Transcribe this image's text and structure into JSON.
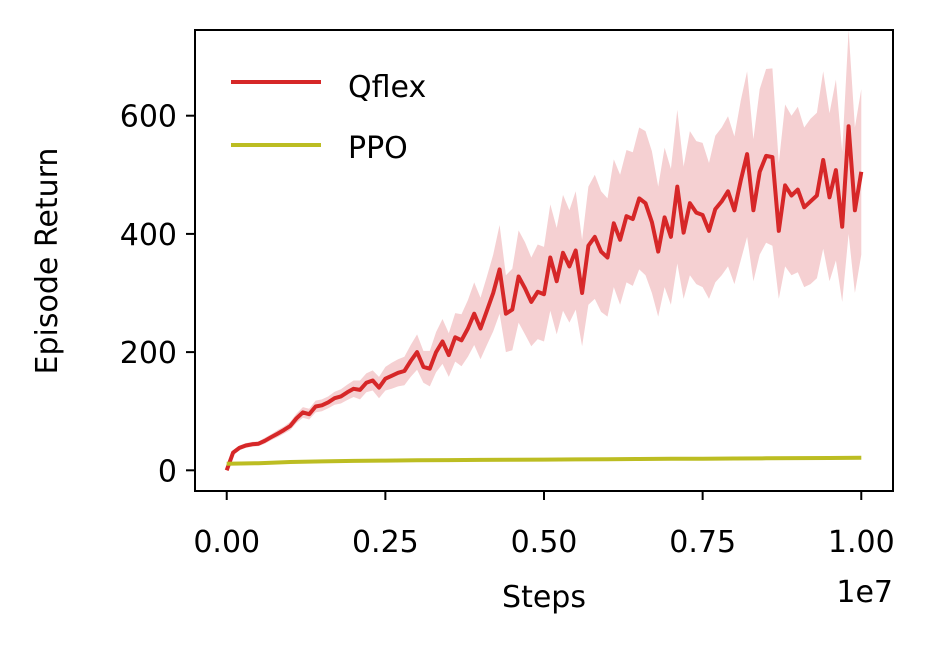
{
  "chart_data": {
    "type": "line",
    "xlabel": "Steps",
    "ylabel": "Episode Return",
    "x_multiplier_label": "1e7",
    "xlim": [
      -0.05,
      1.05
    ],
    "ylim": [
      -35,
      745
    ],
    "x_ticks": [
      0.0,
      0.25,
      0.5,
      0.75,
      1.0
    ],
    "x_tick_labels": [
      "0.00",
      "0.25",
      "0.50",
      "0.75",
      "1.00"
    ],
    "y_ticks": [
      0,
      200,
      400,
      600
    ],
    "y_tick_labels": [
      "0",
      "200",
      "400",
      "600"
    ],
    "grid": false,
    "legend_position": "top-left",
    "series": [
      {
        "name": "Qflex",
        "color": "#d62728",
        "band_color": "#f5d0d2",
        "x": [
          0.0,
          0.01,
          0.02,
          0.03,
          0.04,
          0.05,
          0.06,
          0.07,
          0.08,
          0.09,
          0.1,
          0.11,
          0.12,
          0.13,
          0.14,
          0.15,
          0.16,
          0.17,
          0.18,
          0.19,
          0.2,
          0.21,
          0.22,
          0.23,
          0.24,
          0.25,
          0.26,
          0.27,
          0.28,
          0.29,
          0.3,
          0.31,
          0.32,
          0.33,
          0.34,
          0.35,
          0.36,
          0.37,
          0.38,
          0.39,
          0.4,
          0.41,
          0.42,
          0.43,
          0.44,
          0.45,
          0.46,
          0.47,
          0.48,
          0.49,
          0.5,
          0.51,
          0.52,
          0.53,
          0.54,
          0.55,
          0.56,
          0.57,
          0.58,
          0.59,
          0.6,
          0.61,
          0.62,
          0.63,
          0.64,
          0.65,
          0.66,
          0.67,
          0.68,
          0.69,
          0.7,
          0.71,
          0.72,
          0.73,
          0.74,
          0.75,
          0.76,
          0.77,
          0.78,
          0.79,
          0.8,
          0.81,
          0.82,
          0.83,
          0.84,
          0.85,
          0.86,
          0.87,
          0.88,
          0.89,
          0.9,
          0.91,
          0.92,
          0.93,
          0.94,
          0.95,
          0.96,
          0.97,
          0.98,
          0.99,
          1.0
        ],
        "mean": [
          0,
          30,
          38,
          42,
          44,
          45,
          50,
          56,
          62,
          68,
          75,
          88,
          98,
          95,
          108,
          110,
          115,
          122,
          125,
          132,
          138,
          136,
          148,
          152,
          140,
          155,
          160,
          165,
          168,
          185,
          200,
          175,
          172,
          200,
          218,
          195,
          225,
          220,
          240,
          265,
          240,
          270,
          300,
          340,
          265,
          272,
          328,
          308,
          285,
          302,
          298,
          360,
          320,
          368,
          345,
          372,
          300,
          380,
          395,
          370,
          360,
          418,
          390,
          430,
          425,
          460,
          452,
          420,
          370,
          428,
          395,
          480,
          402,
          452,
          436,
          432,
          405,
          442,
          455,
          472,
          440,
          490,
          535,
          440,
          505,
          532,
          530,
          405,
          482,
          465,
          475,
          445,
          455,
          465,
          525,
          462,
          508,
          412,
          582,
          440,
          505
        ],
        "lower": [
          0,
          27,
          34,
          38,
          40,
          41,
          45,
          51,
          56,
          62,
          68,
          80,
          89,
          86,
          98,
          100,
          105,
          111,
          113,
          119,
          124,
          120,
          132,
          135,
          122,
          135,
          138,
          142,
          144,
          158,
          170,
          148,
          142,
          166,
          180,
          158,
          184,
          176,
          192,
          212,
          188,
          212,
          235,
          265,
          200,
          203,
          250,
          230,
          210,
          222,
          218,
          270,
          230,
          270,
          250,
          272,
          210,
          280,
          290,
          268,
          260,
          310,
          280,
          318,
          312,
          340,
          330,
          300,
          260,
          310,
          280,
          350,
          290,
          330,
          315,
          310,
          290,
          318,
          330,
          345,
          315,
          355,
          395,
          320,
          365,
          385,
          380,
          290,
          345,
          330,
          335,
          310,
          315,
          325,
          375,
          320,
          355,
          285,
          400,
          300,
          365
        ],
        "upper": [
          0,
          33,
          42,
          46,
          48,
          49,
          55,
          61,
          68,
          74,
          82,
          96,
          107,
          104,
          118,
          120,
          125,
          133,
          137,
          145,
          152,
          152,
          164,
          169,
          158,
          175,
          182,
          188,
          192,
          212,
          230,
          202,
          202,
          234,
          256,
          232,
          266,
          264,
          288,
          318,
          292,
          328,
          365,
          415,
          330,
          341,
          406,
          386,
          360,
          382,
          378,
          450,
          410,
          466,
          440,
          472,
          390,
          480,
          500,
          472,
          460,
          526,
          500,
          542,
          538,
          580,
          574,
          540,
          480,
          546,
          510,
          610,
          514,
          574,
          557,
          554,
          520,
          566,
          580,
          599,
          565,
          625,
          675,
          560,
          645,
          679,
          680,
          520,
          619,
          600,
          615,
          580,
          595,
          605,
          675,
          604,
          661,
          539,
          764,
          580,
          645
        ]
      },
      {
        "name": "PPO",
        "color": "#bcbd22",
        "x": [
          0.0,
          0.05,
          0.1,
          0.15,
          0.2,
          0.25,
          0.3,
          0.35,
          0.4,
          0.45,
          0.5,
          0.55,
          0.6,
          0.65,
          0.7,
          0.75,
          0.8,
          0.85,
          0.9,
          0.95,
          1.0
        ],
        "mean": [
          11,
          12,
          14,
          15,
          16,
          16.5,
          17,
          17.3,
          17.6,
          17.9,
          18.2,
          18.5,
          18.8,
          19.1,
          19.4,
          19.7,
          20.0,
          20.3,
          20.6,
          20.9,
          21.2
        ]
      }
    ]
  }
}
